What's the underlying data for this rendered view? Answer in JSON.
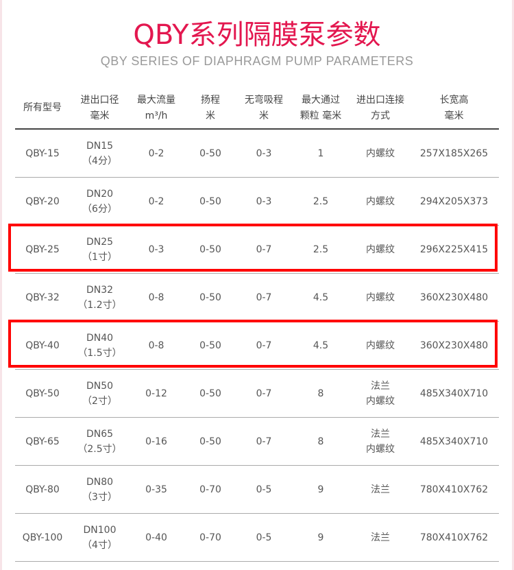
{
  "title": "QBY系列隔膜泵参数",
  "subtitle": "QBY SERIES OF DIAPHRAGM PUMP PARAMETERS",
  "highlight_color": "#ff0000",
  "title_color": "#e3174f",
  "headers": [
    [
      "所有型号"
    ],
    [
      "进出口径",
      "毫米"
    ],
    [
      "最大流量",
      "m³/h"
    ],
    [
      "扬程",
      "米"
    ],
    [
      "无弯吸程",
      "米"
    ],
    [
      "最大通过",
      "颗粒 毫米"
    ],
    [
      "进出口连接",
      "方式"
    ],
    [
      "长宽高",
      "毫米"
    ]
  ],
  "rows": [
    {
      "model": "QBY-15",
      "size": [
        "DN15",
        "（4分）"
      ],
      "flow": "0-2",
      "head": "0-50",
      "suction": "0-3",
      "particle": "1",
      "connection": [
        "内螺纹"
      ],
      "dims": "257X185X265",
      "highlighted": false
    },
    {
      "model": "QBY-20",
      "size": [
        "DN20",
        "（6分）"
      ],
      "flow": "0-2",
      "head": "0-50",
      "suction": "0-3",
      "particle": "2.5",
      "connection": [
        "内螺纹"
      ],
      "dims": "294X205X373",
      "highlighted": false
    },
    {
      "model": "QBY-25",
      "size": [
        "DN25",
        "（1寸）"
      ],
      "flow": "0-3",
      "head": "0-50",
      "suction": "0-7",
      "particle": "2.5",
      "connection": [
        "内螺纹"
      ],
      "dims": "296X225X415",
      "highlighted": true
    },
    {
      "model": "QBY-32",
      "size": [
        "DN32",
        "（1.2寸）"
      ],
      "flow": "0-8",
      "head": "0-50",
      "suction": "0-7",
      "particle": "4.5",
      "connection": [
        "内螺纹"
      ],
      "dims": "360X230X480",
      "highlighted": false
    },
    {
      "model": "QBY-40",
      "size": [
        "DN40",
        "（1.5寸）"
      ],
      "flow": "0-8",
      "head": "0-50",
      "suction": "0-7",
      "particle": "4.5",
      "connection": [
        "内螺纹"
      ],
      "dims": "360X230X480",
      "highlighted": true
    },
    {
      "model": "QBY-50",
      "size": [
        "DN50",
        "（2寸）"
      ],
      "flow": "0-12",
      "head": "0-50",
      "suction": "0-7",
      "particle": "8",
      "connection": [
        "法兰",
        "内螺纹"
      ],
      "dims": "485X340X710",
      "highlighted": false
    },
    {
      "model": "QBY-65",
      "size": [
        "DN65",
        "（2.5寸）"
      ],
      "flow": "0-16",
      "head": "0-50",
      "suction": "0-7",
      "particle": "8",
      "connection": [
        "法兰",
        "内螺纹"
      ],
      "dims": "485X340X710",
      "highlighted": false
    },
    {
      "model": "QBY-80",
      "size": [
        "DN80",
        "（3寸）"
      ],
      "flow": "0-35",
      "head": "0-70",
      "suction": "0-5",
      "particle": "9",
      "connection": [
        "法兰"
      ],
      "dims": "780X410X762",
      "highlighted": false
    },
    {
      "model": "QBY-100",
      "size": [
        "DN100",
        "（4寸）"
      ],
      "flow": "0-40",
      "head": "0-70",
      "suction": "0-5",
      "particle": "9",
      "connection": [
        "法兰"
      ],
      "dims": "780X410X762",
      "highlighted": false
    }
  ]
}
